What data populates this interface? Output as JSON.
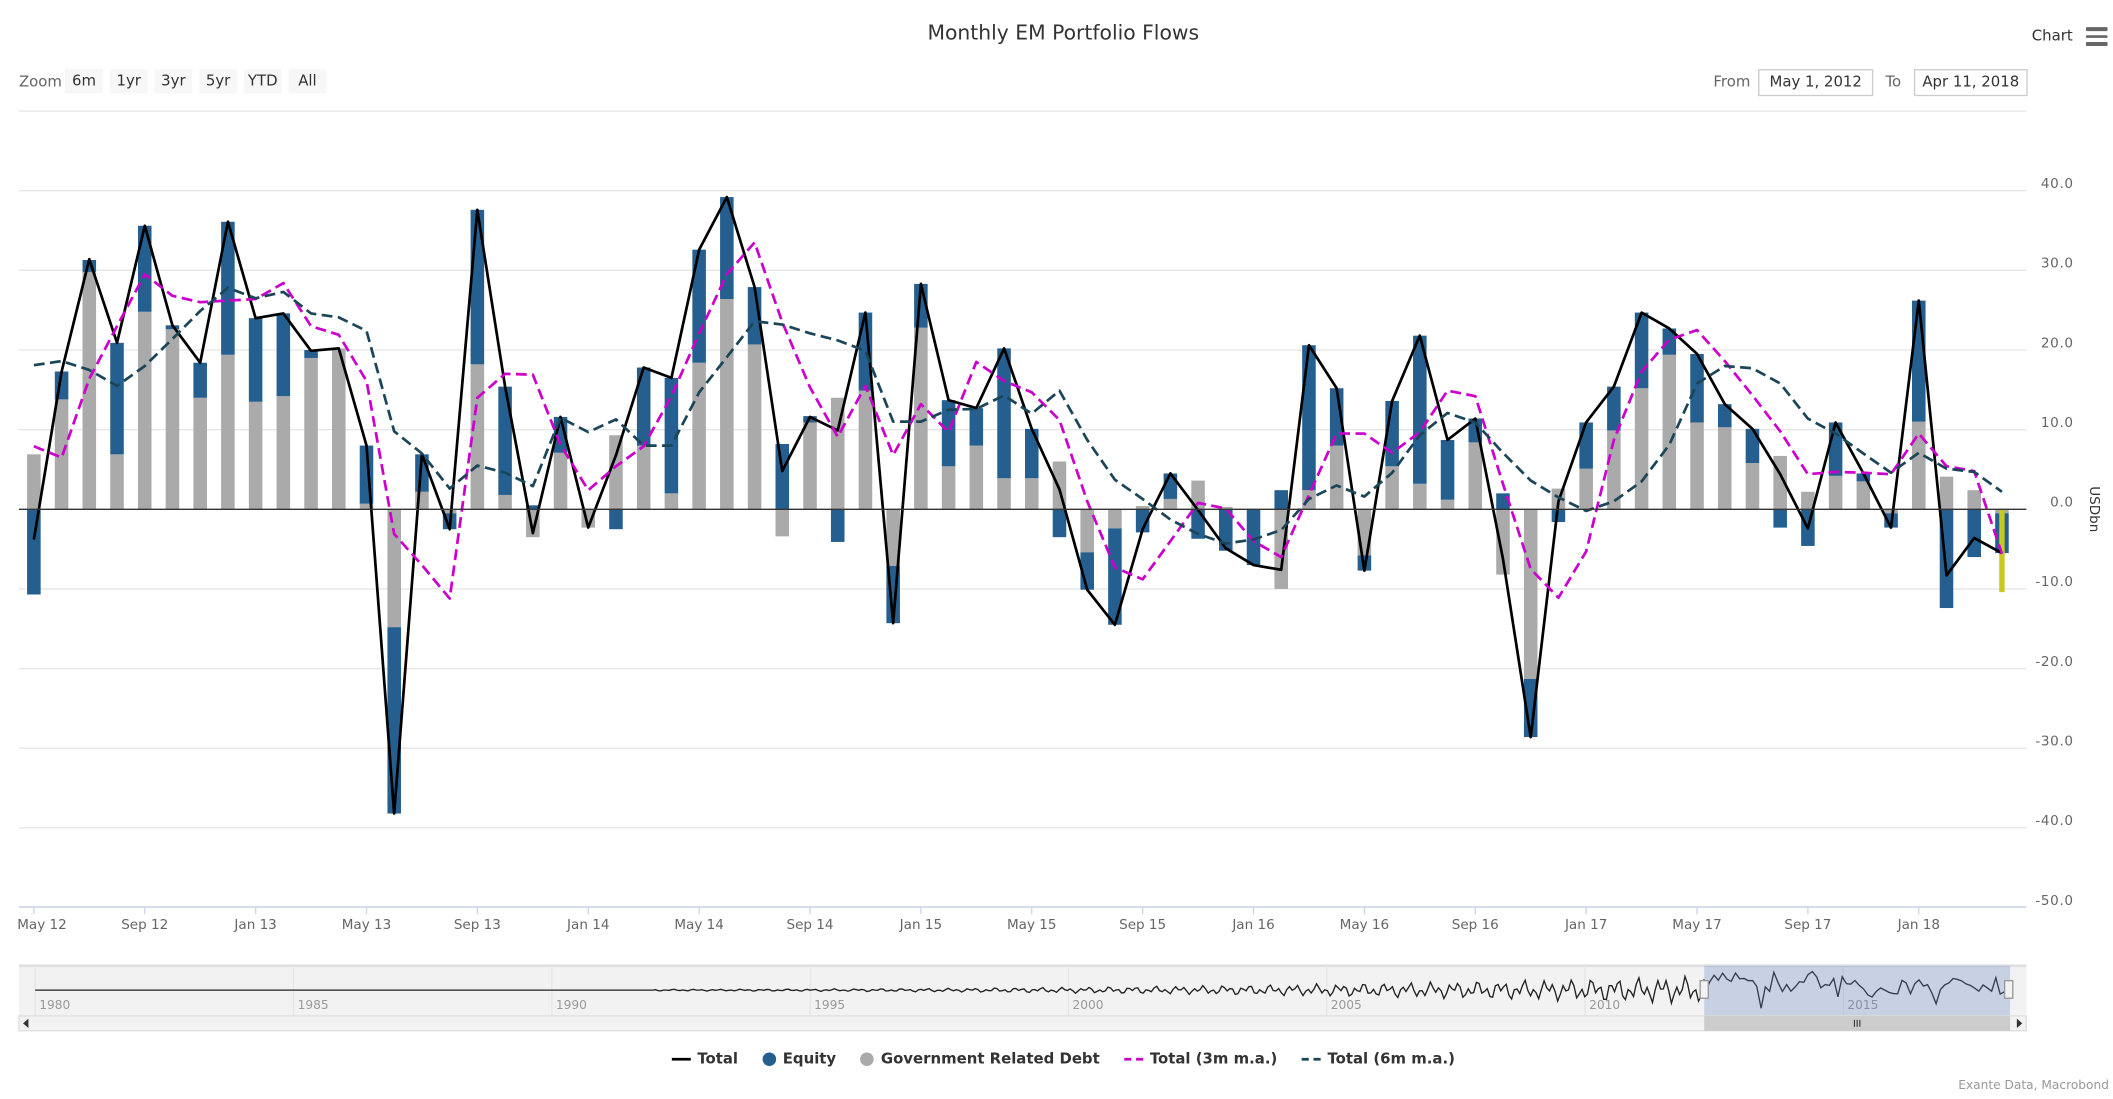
{
  "header": {
    "title": "Monthly EM Portfolio Flows",
    "menu_label": "Chart",
    "menu_icon": "hamburger-icon"
  },
  "range_selector": {
    "zoom_label": "Zoom",
    "buttons": [
      "6m",
      "1yr",
      "3yr",
      "5yr",
      "YTD",
      "All"
    ],
    "from_label": "From",
    "from_value": "May 1, 2012",
    "to_label": "To",
    "to_value": "Apr 11, 2018"
  },
  "navigator": {
    "years": [
      "1980",
      "1985",
      "1990",
      "1995",
      "2000",
      "2005",
      "2010",
      "2015"
    ],
    "selection_start": "May 1, 2012",
    "selection_end": "Apr 11, 2018"
  },
  "legend": {
    "total": "Total",
    "equity": "Equity",
    "debt": "Government Related Debt",
    "ma3": "Total (3m m.a.)",
    "ma6": "Total (6m m.a.)"
  },
  "credits": "Exante Data, Macrobond",
  "chart_data": {
    "type": "bar",
    "stacked": true,
    "title": "Monthly EM Portfolio Flows",
    "ylabel": "USDbn",
    "ylim": [
      -50,
      50
    ],
    "yticks": [
      "40.0",
      "30.0",
      "20.0",
      "10.0",
      "0.0",
      "-10.0",
      "-20.0",
      "-30.0",
      "-40.0",
      "-50.0"
    ],
    "grid": true,
    "legend_position": "bottom",
    "x_tick_labels": [
      "May 12",
      "Sep 12",
      "Jan 13",
      "May 13",
      "Sep 13",
      "Jan 14",
      "May 14",
      "Sep 14",
      "Jan 15",
      "May 15",
      "Sep 15",
      "Jan 16",
      "May 16",
      "Sep 16",
      "Jan 17",
      "May 17",
      "Sep 17",
      "Jan 18"
    ],
    "categories": [
      "May 12",
      "Jun 12",
      "Jul 12",
      "Aug 12",
      "Sep 12",
      "Oct 12",
      "Nov 12",
      "Dec 12",
      "Jan 13",
      "Feb 13",
      "Mar 13",
      "Apr 13",
      "May 13",
      "Jun 13",
      "Jul 13",
      "Aug 13",
      "Sep 13",
      "Oct 13",
      "Nov 13",
      "Dec 13",
      "Jan 14",
      "Feb 14",
      "Mar 14",
      "Apr 14",
      "May 14",
      "Jun 14",
      "Jul 14",
      "Aug 14",
      "Sep 14",
      "Oct 14",
      "Nov 14",
      "Dec 14",
      "Jan 15",
      "Feb 15",
      "Mar 15",
      "Apr 15",
      "May 15",
      "Jun 15",
      "Jul 15",
      "Aug 15",
      "Sep 15",
      "Oct 15",
      "Nov 15",
      "Dec 15",
      "Jan 16",
      "Feb 16",
      "Mar 16",
      "Apr 16",
      "May 16",
      "Jun 16",
      "Jul 16",
      "Aug 16",
      "Sep 16",
      "Oct 16",
      "Nov 16",
      "Dec 16",
      "Jan 17",
      "Feb 17",
      "Mar 17",
      "Apr 17",
      "May 17",
      "Jun 17",
      "Jul 17",
      "Aug 17",
      "Sep 17",
      "Oct 17",
      "Nov 17",
      "Dec 17",
      "Jan 18",
      "Feb 18",
      "Mar 18",
      "Apr 18"
    ],
    "series": [
      {
        "name": "Government Related Debt",
        "kind": "bar",
        "color": "#aaaaaa",
        "values": [
          6.9,
          13.8,
          29.8,
          6.9,
          24.8,
          22.6,
          14.0,
          19.4,
          13.5,
          14.2,
          19.0,
          20.2,
          0.7,
          -14.8,
          2.2,
          -0.5,
          18.2,
          1.8,
          -3.5,
          7.1,
          -2.3,
          9.3,
          8.0,
          2.0,
          18.4,
          26.4,
          20.7,
          -3.4,
          10.9,
          14.0,
          14.9,
          -7.1,
          22.8,
          5.4,
          8.0,
          3.9,
          3.9,
          6.0,
          -5.4,
          -2.4,
          0.4,
          1.3,
          3.6,
          0.3,
          0.0,
          -10.0,
          2.4,
          8.0,
          -5.8,
          5.4,
          3.2,
          1.2,
          8.4,
          -8.2,
          -21.3,
          2.6,
          5.1,
          9.9,
          15.2,
          19.4,
          10.9,
          10.3,
          5.8,
          6.7,
          2.2,
          4.2,
          3.5,
          -0.5,
          11.0,
          4.1,
          2.4,
          -0.5
        ]
      },
      {
        "name": "Equity",
        "kind": "bar",
        "color": "#255f8f",
        "values": [
          -10.7,
          3.5,
          1.5,
          14.0,
          10.8,
          0.5,
          4.4,
          16.7,
          10.5,
          10.4,
          1.0,
          0.0,
          7.3,
          -23.4,
          4.7,
          -2.0,
          19.4,
          13.6,
          0.5,
          4.5,
          0.0,
          -2.5,
          9.8,
          14.5,
          14.2,
          12.8,
          7.2,
          8.2,
          0.8,
          -4.1,
          9.8,
          -7.2,
          5.5,
          8.3,
          4.7,
          16.3,
          6.2,
          -3.5,
          -4.7,
          -12.1,
          -2.9,
          3.2,
          -3.7,
          -5.2,
          -7.0,
          2.4,
          18.2,
          7.2,
          -1.9,
          8.2,
          18.6,
          7.5,
          3.0,
          2.0,
          -7.3,
          -1.6,
          5.8,
          5.5,
          9.5,
          3.3,
          8.6,
          2.9,
          4.3,
          -2.3,
          -4.6,
          6.7,
          1.0,
          -1.8,
          15.2,
          -12.4,
          -6.0,
          -5.0
        ]
      },
      {
        "name": "Total",
        "kind": "line",
        "color": "#000000",
        "values": [
          -3.8,
          17.3,
          31.4,
          20.9,
          35.6,
          23.1,
          18.4,
          36.1,
          24.0,
          24.6,
          19.9,
          20.2,
          8.0,
          -38.2,
          6.9,
          -2.5,
          37.6,
          15.4,
          -3.0,
          11.6,
          -2.3,
          6.8,
          17.8,
          16.5,
          32.6,
          39.2,
          27.9,
          4.8,
          11.6,
          9.9,
          24.7,
          -14.3,
          28.3,
          13.7,
          12.7,
          20.2,
          10.1,
          2.5,
          -10.1,
          -14.5,
          -2.5,
          4.5,
          -0.1,
          -4.9,
          -7.0,
          -7.6,
          20.6,
          15.2,
          -7.7,
          13.6,
          21.8,
          8.7,
          11.4,
          -6.2,
          -28.6,
          1.0,
          10.9,
          15.4,
          24.7,
          22.7,
          19.5,
          13.2,
          10.1,
          4.4,
          -2.4,
          10.9,
          4.5,
          -2.3,
          26.2,
          -8.3,
          -3.6,
          -5.5
        ]
      },
      {
        "name": "Total (3m m.a.)",
        "kind": "line",
        "dash": true,
        "color": "#cc00cc",
        "values": [
          7.9,
          6.5,
          16.4,
          23.0,
          29.5,
          26.8,
          26.0,
          26.2,
          26.4,
          28.4,
          23.0,
          21.9,
          16.1,
          -3.1,
          -7.0,
          -11.2,
          14.0,
          17.0,
          16.9,
          8.1,
          2.4,
          5.4,
          7.9,
          14.2,
          22.1,
          29.5,
          33.5,
          23.5,
          15.3,
          9.1,
          15.5,
          6.8,
          13.2,
          9.7,
          18.5,
          16.1,
          14.7,
          11.2,
          1.0,
          -7.3,
          -8.8,
          -4.0,
          0.8,
          0.1,
          -4.0,
          -6.0,
          1.8,
          9.5,
          9.5,
          7.1,
          9.7,
          14.9,
          14.2,
          3.2,
          -7.5,
          -11.1,
          -5.3,
          8.7,
          17.3,
          21.3,
          22.5,
          18.6,
          14.3,
          9.8,
          4.4,
          4.7,
          4.6,
          4.4,
          9.5,
          5.4,
          4.8,
          -5.6
        ]
      },
      {
        "name": "Total (6m m.a.)",
        "kind": "line",
        "dash": true,
        "color": "#1b4659",
        "values": [
          18.1,
          18.6,
          17.5,
          15.5,
          18.0,
          21.4,
          24.9,
          27.8,
          26.5,
          27.3,
          24.6,
          24.1,
          22.4,
          9.8,
          7.0,
          2.6,
          5.5,
          4.6,
          2.9,
          11.5,
          9.7,
          11.3,
          8.0,
          8.0,
          14.7,
          19.1,
          23.6,
          23.2,
          22.1,
          21.2,
          19.9,
          11.0,
          11.0,
          12.5,
          12.6,
          14.3,
          12.0,
          14.9,
          8.7,
          3.7,
          1.3,
          -1.3,
          -3.1,
          -4.3,
          -3.8,
          -2.6,
          1.3,
          3.0,
          1.6,
          4.6,
          9.3,
          12.1,
          10.9,
          7.1,
          3.6,
          1.5,
          -0.2,
          1.0,
          3.5,
          8.1,
          15.8,
          18.0,
          17.7,
          15.8,
          11.4,
          9.5,
          7.0,
          4.6,
          7.1,
          5.1,
          4.7,
          2.2
        ]
      }
    ],
    "highlight_bar": {
      "category": "Apr 18",
      "value": -10.4,
      "color": "#c8c820"
    }
  }
}
